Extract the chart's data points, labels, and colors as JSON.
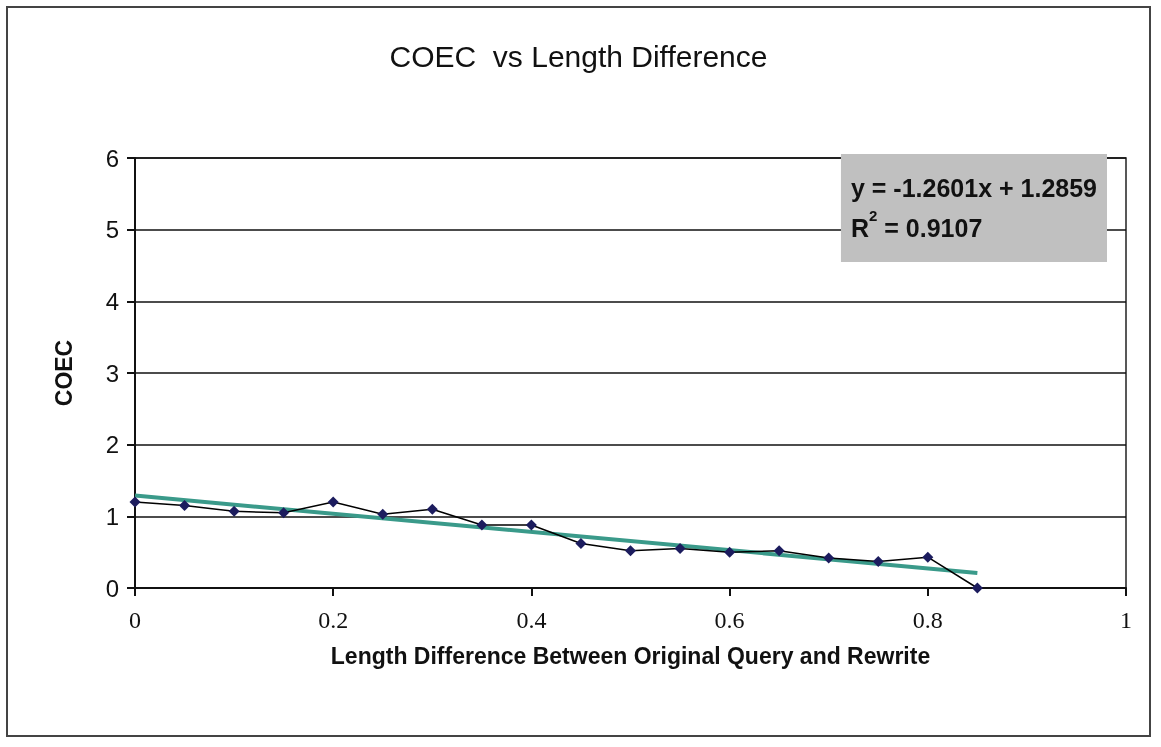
{
  "chart_data": {
    "type": "line",
    "title": "COEC  vs Length Difference",
    "xlabel": "Length Difference Between Original Query and Rewrite",
    "ylabel": "COEC",
    "xlim": [
      0,
      1
    ],
    "xticks": [
      0,
      0.2,
      0.4,
      0.6,
      0.8,
      1
    ],
    "ylim": [
      0,
      6
    ],
    "yticks": [
      0,
      1,
      2,
      3,
      4,
      5,
      6
    ],
    "grid": "y",
    "marker": "diamond",
    "line_style": "solid",
    "annotations": [
      "y = -1.2601x + 1.2859",
      "R$^{2}$ = 0.9107"
    ],
    "series": [
      {
        "color": "#1c1c5e",
        "x": [
          0,
          0.05,
          0.1,
          0.15,
          0.2,
          0.25,
          0.3,
          0.35,
          0.4,
          0.45,
          0.5,
          0.55,
          0.6,
          0.65,
          0.7,
          0.75,
          0.8,
          0.85
        ],
        "values": [
          1.2,
          1.15,
          1.07,
          1.05,
          1.2,
          1.03,
          1.1,
          0.88,
          0.88,
          0.62,
          0.52,
          0.55,
          0.5,
          0.52,
          0.42,
          0.37,
          0.43,
          0.0
        ]
      },
      {
        "color": "#3a9a8a",
        "marker": "none",
        "x": [
          0,
          0.85
        ],
        "values": [
          1.29,
          0.21
        ]
      }
    ]
  }
}
